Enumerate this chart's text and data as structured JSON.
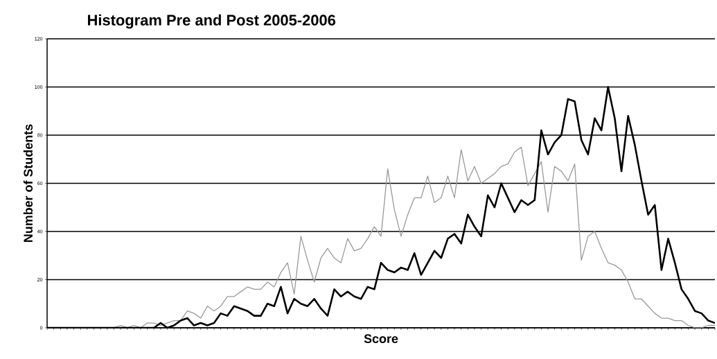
{
  "chart_data": {
    "type": "line",
    "title": "Histogram Pre and Post 2005-2006",
    "xlabel": "Score",
    "ylabel": "Number of Students",
    "categories": [
      null,
      null,
      null,
      null,
      null,
      null,
      null,
      null,
      null,
      null,
      null,
      null,
      null,
      null,
      null,
      null,
      null,
      null,
      null,
      null,
      null,
      null,
      null,
      null,
      null,
      null,
      null,
      null,
      null,
      null,
      null,
      null,
      null,
      null,
      null,
      null,
      null,
      null,
      null,
      null,
      null,
      null,
      null,
      null,
      null,
      null,
      null,
      null,
      null,
      null,
      null,
      null,
      null,
      null,
      null,
      null,
      null,
      null,
      null,
      null,
      null,
      null,
      null,
      null,
      null,
      null,
      null,
      null,
      null,
      null,
      null,
      null,
      null,
      null,
      null,
      null,
      null,
      null,
      null,
      null,
      null,
      null,
      null,
      null,
      null,
      null,
      null,
      null,
      null,
      null,
      null,
      null,
      null,
      null,
      null,
      null,
      null,
      null,
      null,
      null,
      null
    ],
    "series": [
      {
        "color": "#999999",
        "values": [
          0,
          0,
          0,
          0,
          0,
          0,
          0,
          0,
          0,
          0,
          0,
          1,
          0,
          1,
          0,
          2,
          2,
          1,
          2,
          3,
          3,
          7,
          6,
          4,
          9,
          7,
          9,
          13,
          13,
          15,
          17,
          16,
          16,
          19,
          17,
          23,
          27,
          14,
          38,
          28,
          19,
          29,
          33,
          29,
          27,
          37,
          32,
          33,
          37,
          42,
          38,
          66,
          49,
          38,
          47,
          54,
          54,
          63,
          52,
          54,
          63,
          54,
          74,
          61,
          67,
          60,
          62,
          64,
          67,
          68,
          73,
          75,
          59,
          64,
          69,
          48,
          67,
          65,
          61,
          68,
          28,
          38,
          40,
          33,
          27,
          26,
          24,
          19,
          12,
          12,
          9,
          6,
          4,
          4,
          3,
          3,
          1,
          0,
          0,
          1,
          1
        ]
      },
      {
        "color": "#000000",
        "values": [
          0,
          0,
          0,
          0,
          0,
          0,
          0,
          0,
          0,
          0,
          0,
          0,
          0,
          0,
          0,
          0,
          0,
          2,
          0,
          1,
          3,
          4,
          1,
          2,
          1,
          2,
          6,
          5,
          9,
          8,
          7,
          5,
          5,
          10,
          9,
          17,
          6,
          12,
          10,
          9,
          12,
          8,
          5,
          16,
          13,
          15,
          13,
          12,
          17,
          16,
          27,
          24,
          23,
          25,
          24,
          31,
          22,
          27,
          32,
          29,
          37,
          39,
          35,
          47,
          42,
          38,
          55,
          50,
          60,
          54,
          48,
          53,
          51,
          53,
          82,
          72,
          77,
          80,
          95,
          94,
          78,
          72,
          87,
          82,
          100,
          87,
          65,
          88,
          76,
          61,
          47,
          51,
          24,
          37,
          27,
          16,
          12,
          7,
          6,
          3,
          2
        ]
      }
    ],
    "ylim": [
      0,
      120
    ],
    "yticks": [
      0,
      20,
      40,
      60,
      80,
      100,
      120
    ],
    "grid": "y",
    "tick_labels": "y"
  }
}
